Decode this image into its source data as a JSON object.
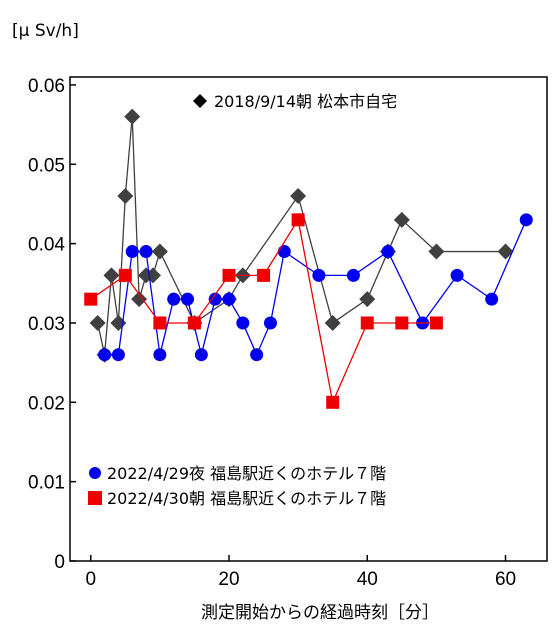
{
  "chart_data": {
    "type": "line",
    "ylabel": "[μ Sv/h]",
    "xlabel": "測定開始からの経過時刻［分］",
    "xlim": [
      -3,
      66
    ],
    "ylim": [
      0,
      0.061
    ],
    "xticks": [
      0,
      20,
      40,
      60
    ],
    "xtick_labels": [
      "0",
      "20",
      "40",
      "60"
    ],
    "yticks": [
      0,
      0.01,
      0.02,
      0.03,
      0.04,
      0.05,
      0.06
    ],
    "ytick_labels": [
      "0",
      "0.01",
      "0.02",
      "0.03",
      "0.04",
      "0.05",
      "0.06"
    ],
    "grid": false,
    "series": [
      {
        "name": "2018/9/14朝 松本市自宅",
        "color": "#404040",
        "line_color": "#404040",
        "marker": "diamond",
        "legend_position": "top-right",
        "x": [
          1,
          2,
          3,
          4,
          5,
          6,
          7,
          8,
          9,
          10,
          15,
          20,
          22,
          30,
          35,
          40,
          43,
          45,
          50,
          60
        ],
        "y": [
          0.03,
          0.026,
          0.036,
          0.03,
          0.046,
          0.056,
          0.033,
          0.036,
          0.036,
          0.039,
          0.03,
          0.033,
          0.036,
          0.046,
          0.03,
          0.033,
          0.039,
          0.043,
          0.039,
          0.039
        ]
      },
      {
        "name": "2022/4/29夜 福島駅近くのホテル７階",
        "color": "#0000ee",
        "line_color": "#0000ee",
        "marker": "circle",
        "legend_position": "bottom-left",
        "x": [
          2,
          4,
          6,
          8,
          10,
          12,
          14,
          16,
          18,
          20,
          22,
          24,
          26,
          28,
          33,
          38,
          43,
          48,
          53,
          58,
          63
        ],
        "y": [
          0.026,
          0.026,
          0.039,
          0.039,
          0.026,
          0.033,
          0.033,
          0.026,
          0.033,
          0.033,
          0.03,
          0.026,
          0.03,
          0.039,
          0.036,
          0.036,
          0.039,
          0.03,
          0.036,
          0.033,
          0.043
        ]
      },
      {
        "name": "2022/4/30朝 福島駅近くのホテル７階",
        "color": "#ee0000",
        "line_color": "#ee0000",
        "marker": "square",
        "legend_position": "bottom-left",
        "x": [
          0,
          5,
          10,
          15,
          20,
          25,
          30,
          35,
          40,
          45,
          50
        ],
        "y": [
          0.033,
          0.036,
          0.03,
          0.03,
          0.036,
          0.036,
          0.043,
          0.02,
          0.03,
          0.03,
          0.03
        ]
      }
    ]
  }
}
